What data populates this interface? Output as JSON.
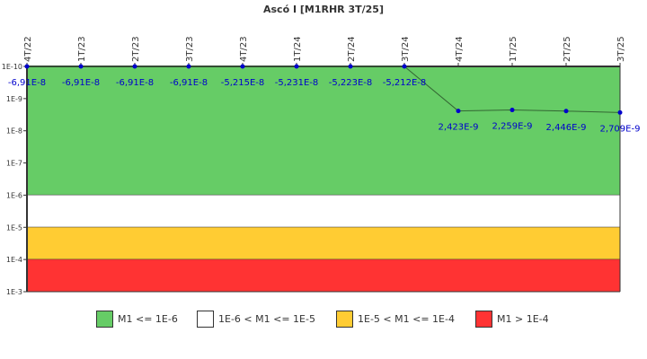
{
  "chart_data": {
    "type": "line",
    "title": "Ascó I [M1RHR 3T/25]",
    "xlabel": "",
    "ylabel": "",
    "y_scale": "log",
    "y_inverted": true,
    "ylim": [
      1e-10,
      0.001
    ],
    "y_ticks": [
      "1E-10",
      "1E-9",
      "1E-8",
      "1E-7",
      "1E-6",
      "1E-5",
      "1E-4",
      "1E-3"
    ],
    "categories": [
      "4T/22",
      "1T/23",
      "2T/23",
      "3T/23",
      "4T/23",
      "1T/24",
      "2T/24",
      "3T/24",
      "4T/24",
      "1T/25",
      "2T/25",
      "3T/25"
    ],
    "series": [
      {
        "name": "M1RHR",
        "values": [
          -6.91e-08,
          -6.91e-08,
          -6.91e-08,
          -6.91e-08,
          -5.215e-08,
          -5.231e-08,
          -5.223e-08,
          -5.212e-08,
          2.423e-09,
          2.259e-09,
          2.446e-09,
          2.709e-09
        ],
        "point_labels": [
          "-6,91E-8",
          "-6,91E-8",
          "-6,91E-8",
          "-6,91E-8",
          "-5,215E-8",
          "-5,231E-8",
          "-5,223E-8",
          "-5,212E-8",
          "2,423E-9",
          "2,259E-9",
          "2,446E-9",
          "2,709E-9"
        ],
        "color": "#0000cc"
      }
    ],
    "bands": [
      {
        "label": "M1 <= 1E-6",
        "from": 1e-10,
        "to": 1e-06,
        "color": "#66cc66"
      },
      {
        "label": "1E-6 < M1 <= 1E-5",
        "from": 1e-06,
        "to": 1e-05,
        "color": "#ffffff"
      },
      {
        "label": "1E-5 < M1 <= 1E-4",
        "from": 1e-05,
        "to": 0.0001,
        "color": "#ffcc33"
      },
      {
        "label": "M1 > 1E-4",
        "from": 0.0001,
        "to": 0.001,
        "color": "#ff3333"
      }
    ],
    "grid": false,
    "legend_position": "bottom"
  },
  "legend": [
    {
      "label": "M1 <= 1E-6",
      "color": "#66cc66"
    },
    {
      "label": "1E-6 < M1 <= 1E-5",
      "color": "#ffffff"
    },
    {
      "label": "1E-5 < M1 <= 1E-4",
      "color": "#ffcc33"
    },
    {
      "label": "M1 > 1E-4",
      "color": "#ff3333"
    }
  ]
}
